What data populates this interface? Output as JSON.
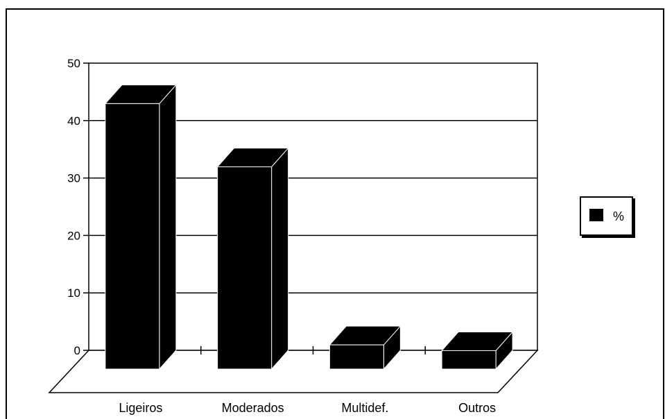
{
  "chart_data": {
    "type": "bar",
    "categories": [
      "Ligeiros",
      "Moderados",
      "Multidef.",
      "Outros"
    ],
    "series": [
      {
        "name": "%",
        "values": [
          45,
          34,
          3,
          2
        ]
      }
    ],
    "ylim": [
      0,
      50
    ],
    "yticks": [
      "0",
      "10",
      "20",
      "30",
      "40",
      "50"
    ],
    "grid": true,
    "style": "3d",
    "legend_position": "right",
    "colors": {
      "bar": "#000000",
      "background": "#ffffff"
    }
  }
}
